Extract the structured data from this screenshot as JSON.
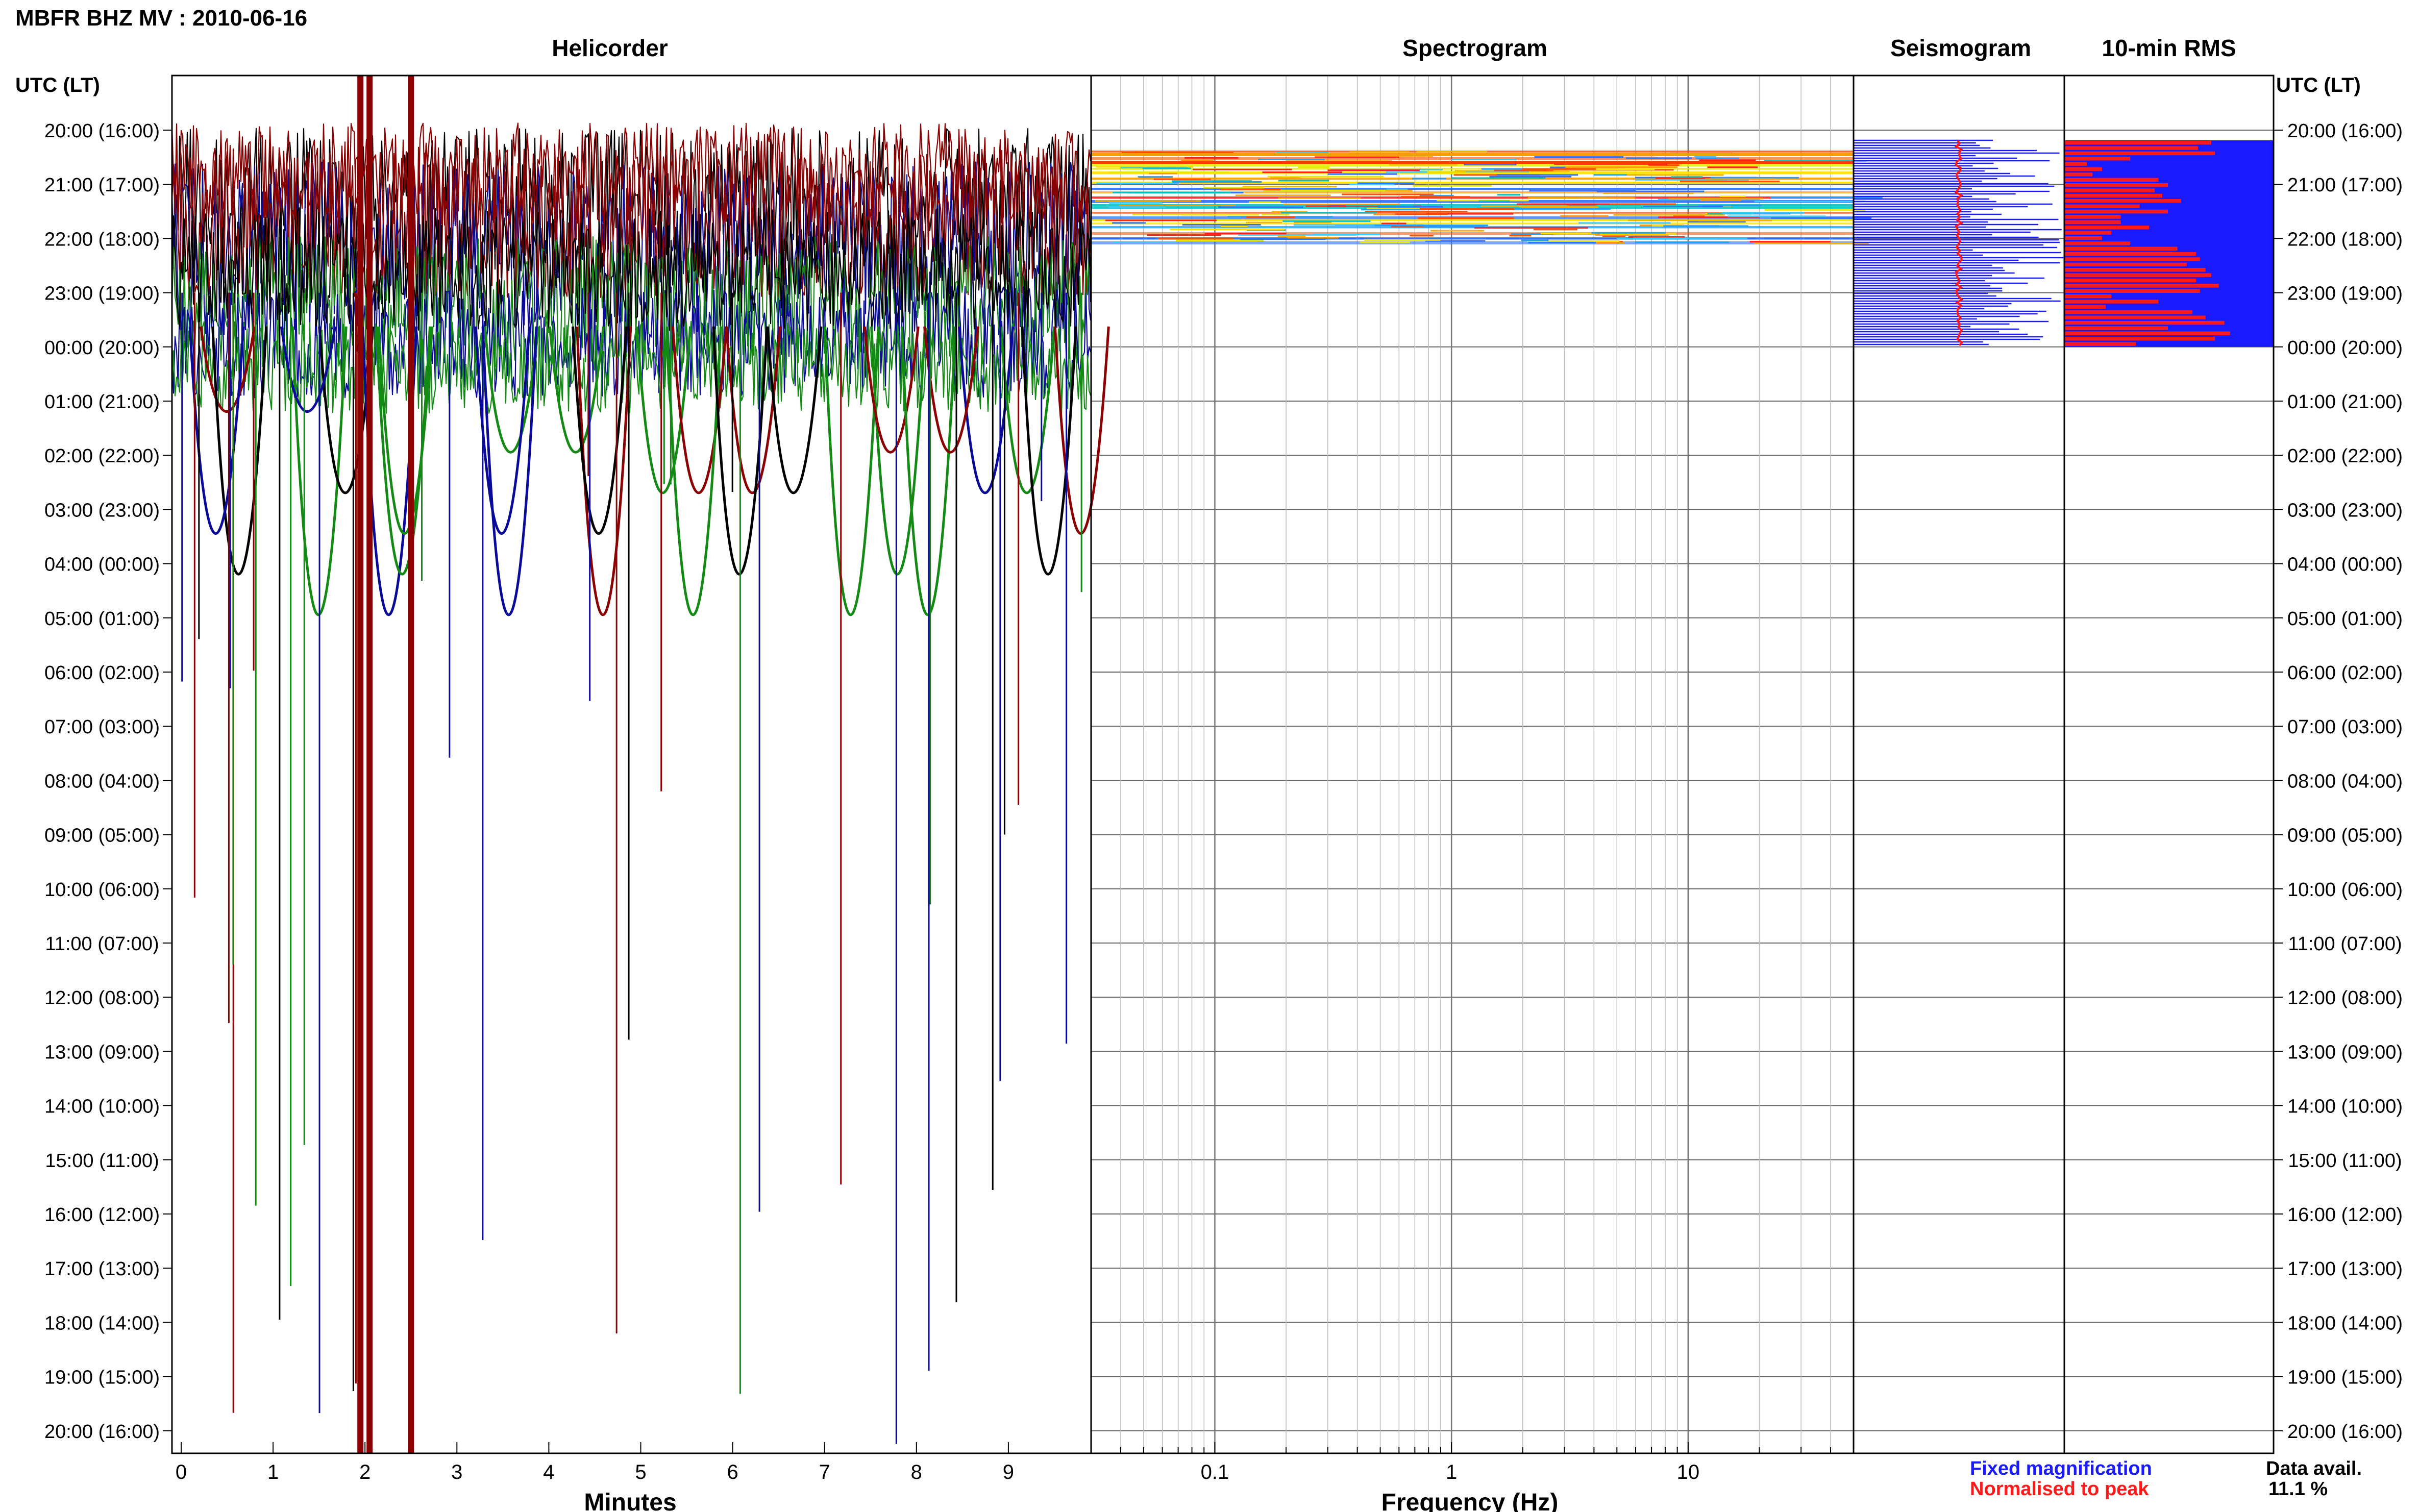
{
  "header": {
    "title": "MBFR BHZ MV : 2010-06-16",
    "utc_label_left": "UTC (LT)",
    "utc_label_right": "UTC (LT)"
  },
  "panels": {
    "helicorder": "Helicorder",
    "spectrogram": "Spectrogram",
    "seismogram": "Seismogram",
    "rms": "10-min RMS"
  },
  "axes": {
    "minutes_label": "Minutes",
    "frequency_label": "Frequency (Hz)",
    "minute_ticks": [
      "0",
      "1",
      "2",
      "3",
      "4",
      "5",
      "6",
      "7",
      "8",
      "9"
    ],
    "frequency_ticks": [
      "0.1",
      "1",
      "10"
    ]
  },
  "time_labels": [
    "20:00 (16:00)",
    "21:00 (17:00)",
    "22:00 (18:00)",
    "23:00 (19:00)",
    "00:00 (20:00)",
    "01:00 (21:00)",
    "02:00 (22:00)",
    "03:00 (23:00)",
    "04:00 (00:00)",
    "05:00 (01:00)",
    "06:00 (02:00)",
    "07:00 (03:00)",
    "08:00 (04:00)",
    "09:00 (05:00)",
    "10:00 (06:00)",
    "11:00 (07:00)",
    "12:00 (08:00)",
    "13:00 (09:00)",
    "14:00 (10:00)",
    "15:00 (11:00)",
    "16:00 (12:00)",
    "17:00 (13:00)",
    "18:00 (14:00)",
    "19:00 (15:00)",
    "20:00 (16:00)"
  ],
  "legend": {
    "fixed": "Fixed magnification",
    "normalised": "Normalised to peak",
    "fixed_color": "#1a1aff",
    "normalised_color": "#ff1a1a"
  },
  "data_avail": {
    "label": "Data avail.",
    "value": "11.1 %"
  },
  "chart_data": {
    "type": "area",
    "trace_colors": [
      "#0a0a9a",
      "#8b0000",
      "#000000",
      "#138a13"
    ],
    "helicorder_xlim": [
      0,
      10
    ],
    "frequency_xlim": [
      0.03,
      50
    ],
    "frequency_scale": "log",
    "data_rows_hours_utc": [
      "20:00",
      "21:00",
      "22:00",
      "23:00"
    ],
    "rms_values": [
      0.78,
      0.71,
      0.8,
      0.35,
      0.12,
      0.2,
      0.15,
      0.5,
      0.55,
      0.48,
      0.52,
      0.62,
      0.4,
      0.55,
      0.3,
      0.3,
      0.45,
      0.25,
      0.2,
      0.35,
      0.6,
      0.7,
      0.72,
      0.65,
      0.75,
      0.78,
      0.7,
      0.82,
      0.72,
      0.25,
      0.5,
      0.22,
      0.68,
      0.75,
      0.85,
      0.55,
      0.88,
      0.8,
      0.38
    ]
  }
}
